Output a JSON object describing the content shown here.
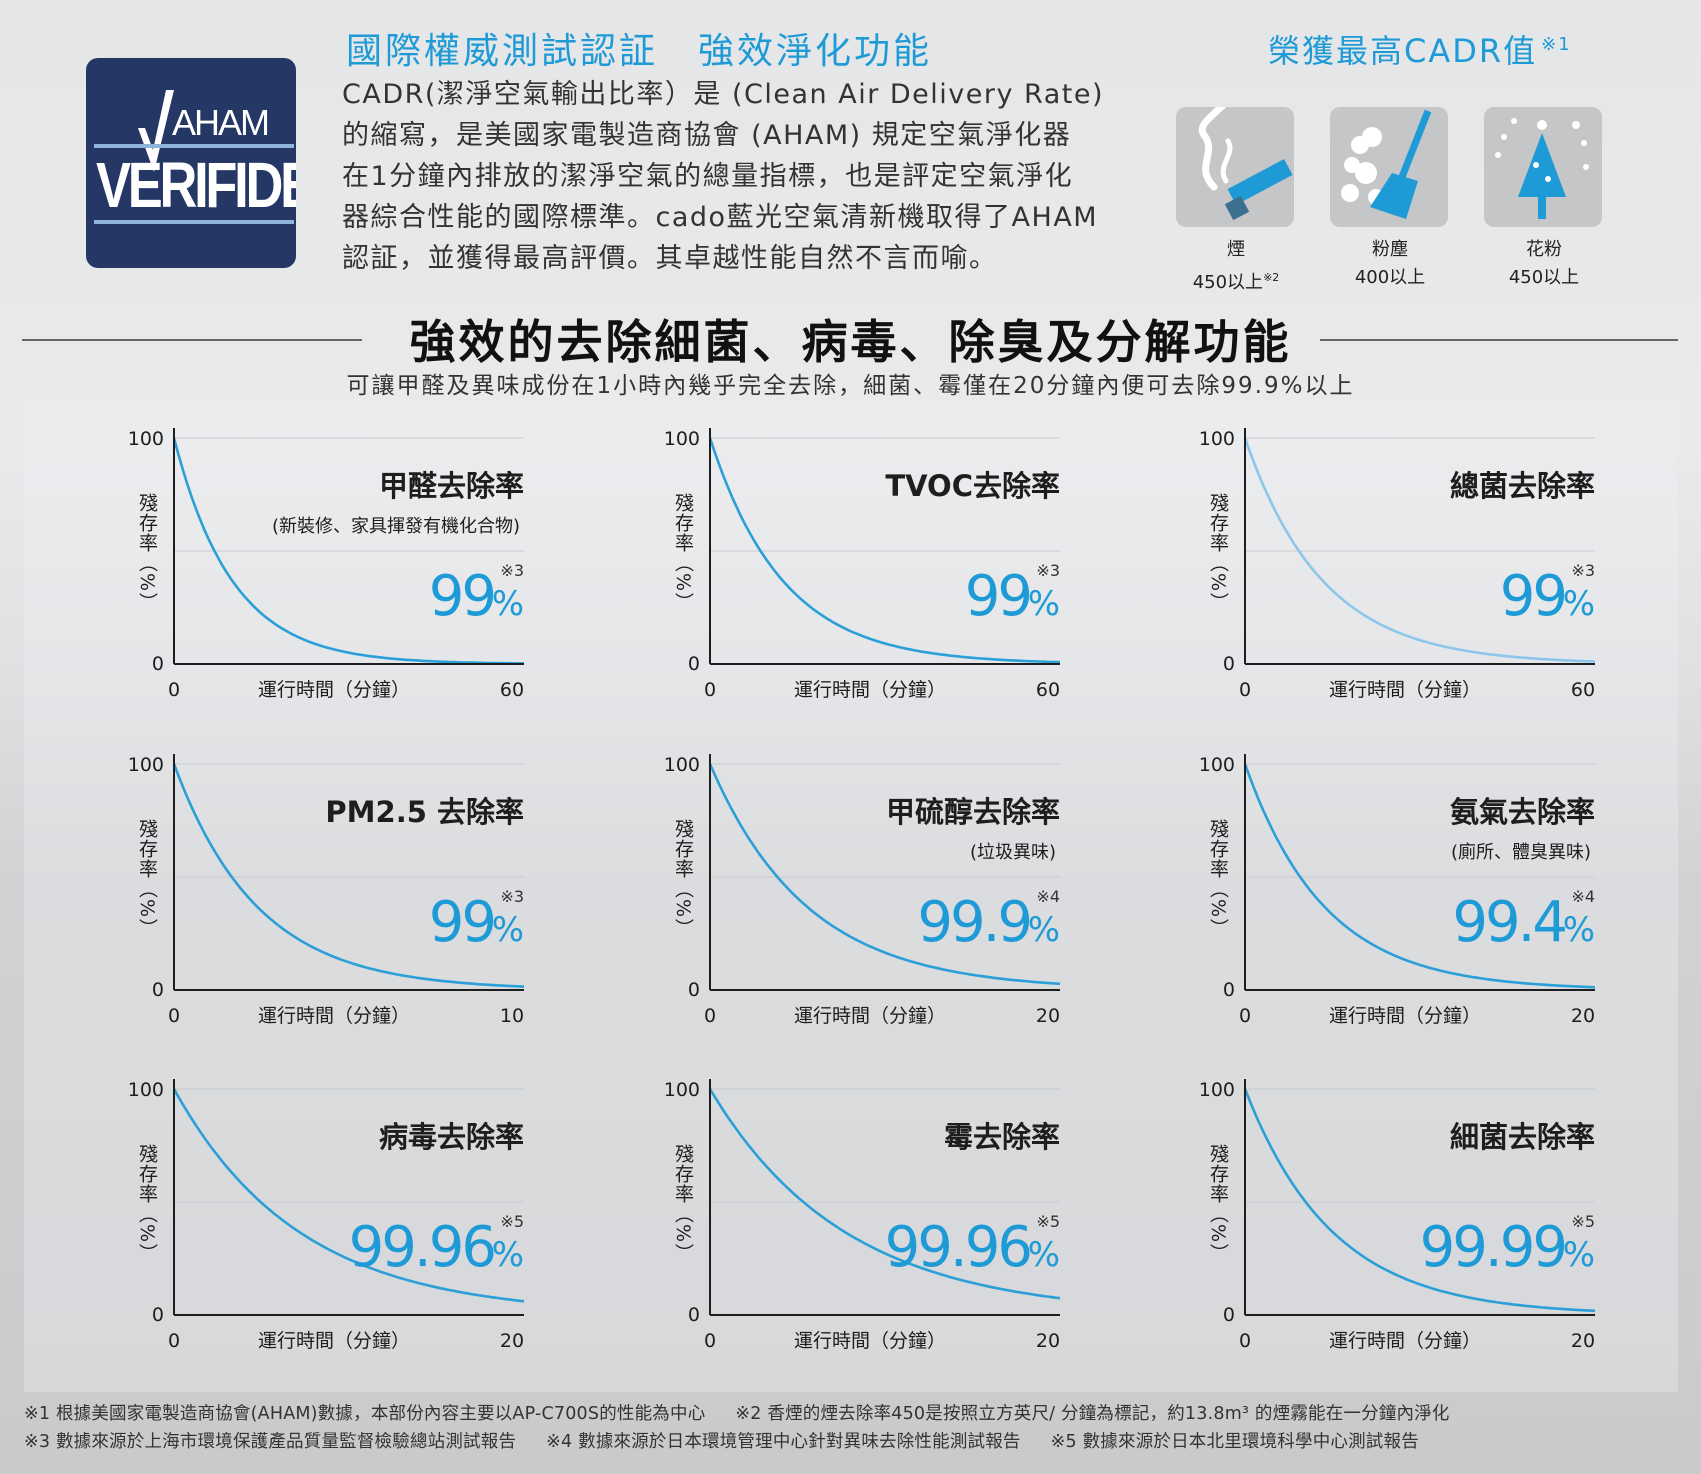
{
  "badge": {
    "top": "AHAM",
    "bottom": "VERIFIDE"
  },
  "intro": {
    "title_a": "國際權威測試認証",
    "title_b": "強效淨化功能",
    "lines": [
      "CADR(潔淨空氣輸出比率）是 (Clean Air Delivery Rate)",
      "的縮寫，是美國家電製造商協會 (AHAM) 規定空氣淨化器",
      "在1分鐘內排放的潔淨空氣的總量指標，也是評定空氣淨化",
      "器綜合性能的國際標準。cado藍光空氣清新機取得了AHAM",
      "認証，並獲得最高評價。其卓越性能自然不言而喻。"
    ]
  },
  "cadr": {
    "title": "榮獲最高CADR值",
    "title_note": "※1",
    "items": [
      {
        "icon": "cigarette-smoke-icon",
        "name": "煙",
        "value": "450以上",
        "note": "※2"
      },
      {
        "icon": "broom-dust-icon",
        "name": "粉塵",
        "value": "400以上",
        "note": ""
      },
      {
        "icon": "pollen-tree-icon",
        "name": "花粉",
        "value": "450以上",
        "note": ""
      }
    ]
  },
  "section": {
    "title": "強效的去除細菌、病毒、除臭及分解功能",
    "subtitle": "可讓甲醛及異味成份在1小時內幾乎完全去除，細菌、霉僅在20分鐘內便可去除99.9%以上"
  },
  "colors": {
    "accent": "#1e9ad6",
    "curve": "#2a9fd8",
    "curve_light": "#8cc6ea"
  },
  "chart_data": [
    {
      "type": "line",
      "title": "甲醛去除率",
      "subtitle": "(新裝修、家具揮發有機化合物)",
      "value": "99",
      "unit": "%",
      "note": "※3",
      "xlabel": "運行時間（分鐘）",
      "ylabel": "殘存率（%）",
      "x_ticks": [
        "0",
        "60"
      ],
      "y_ticks": [
        "100",
        "0"
      ],
      "xlim": [
        0,
        60
      ],
      "ylim": [
        0,
        100
      ],
      "decay_k": 0.1,
      "light": false
    },
    {
      "type": "line",
      "title": "TVOC去除率",
      "subtitle": "",
      "value": "99",
      "unit": "%",
      "note": "※3",
      "xlabel": "運行時間（分鐘）",
      "ylabel": "殘存率（%）",
      "x_ticks": [
        "0",
        "60"
      ],
      "y_ticks": [
        "100",
        "0"
      ],
      "xlim": [
        0,
        60
      ],
      "ylim": [
        0,
        100
      ],
      "decay_k": 0.08,
      "light": false
    },
    {
      "type": "line",
      "title": "總菌去除率",
      "subtitle": "",
      "value": "99",
      "unit": "%",
      "note": "※3",
      "xlabel": "運行時間（分鐘）",
      "ylabel": "殘存率（%）",
      "x_ticks": [
        "0",
        "60"
      ],
      "y_ticks": [
        "100",
        "0"
      ],
      "xlim": [
        0,
        60
      ],
      "ylim": [
        0,
        100
      ],
      "decay_k": 0.075,
      "light": true
    },
    {
      "type": "line",
      "title": "PM2.5 去除率",
      "subtitle": "",
      "value": "99",
      "unit": "%",
      "note": "※3",
      "xlabel": "運行時間（分鐘）",
      "ylabel": "殘存率（%）",
      "x_ticks": [
        "0",
        "10"
      ],
      "y_ticks": [
        "100",
        "0"
      ],
      "xlim": [
        0,
        10
      ],
      "ylim": [
        0,
        100
      ],
      "decay_k": 0.42,
      "light": false
    },
    {
      "type": "line",
      "title": "甲硫醇去除率",
      "subtitle": "(垃圾異味)",
      "value": "99.9",
      "unit": "%",
      "note": "※4",
      "xlabel": "運行時間（分鐘）",
      "ylabel": "殘存率（%）",
      "x_ticks": [
        "0",
        "20"
      ],
      "y_ticks": [
        "100",
        "0"
      ],
      "xlim": [
        0,
        20
      ],
      "ylim": [
        0,
        100
      ],
      "decay_k": 0.18,
      "light": false
    },
    {
      "type": "line",
      "title": "氨氣去除率",
      "subtitle": "(廁所、體臭異味)",
      "value": "99.4",
      "unit": "%",
      "note": "※4",
      "xlabel": "運行時間（分鐘）",
      "ylabel": "殘存率（%）",
      "x_ticks": [
        "0",
        "20"
      ],
      "y_ticks": [
        "100",
        "0"
      ],
      "xlim": [
        0,
        20
      ],
      "ylim": [
        0,
        100
      ],
      "decay_k": 0.22,
      "light": false
    },
    {
      "type": "line",
      "title": "病毒去除率",
      "subtitle": "",
      "value": "99.96",
      "unit": "%",
      "note": "※5",
      "xlabel": "運行時間（分鐘）",
      "ylabel": "殘存率（%）",
      "x_ticks": [
        "0",
        "20"
      ],
      "y_ticks": [
        "100",
        "0"
      ],
      "xlim": [
        0,
        20
      ],
      "ylim": [
        0,
        100
      ],
      "decay_k": 0.14,
      "light": false
    },
    {
      "type": "line",
      "title": "霉去除率",
      "subtitle": "",
      "value": "99.96",
      "unit": "%",
      "note": "※5",
      "xlabel": "運行時間（分鐘）",
      "ylabel": "殘存率（%）",
      "x_ticks": [
        "0",
        "20"
      ],
      "y_ticks": [
        "100",
        "0"
      ],
      "xlim": [
        0,
        20
      ],
      "ylim": [
        0,
        100
      ],
      "decay_k": 0.13,
      "light": false
    },
    {
      "type": "line",
      "title": "細菌去除率",
      "subtitle": "",
      "value": "99.99",
      "unit": "%",
      "note": "※5",
      "xlabel": "運行時間（分鐘）",
      "ylabel": "殘存率（%）",
      "x_ticks": [
        "0",
        "20"
      ],
      "y_ticks": [
        "100",
        "0"
      ],
      "xlim": [
        0,
        20
      ],
      "ylim": [
        0,
        100
      ],
      "decay_k": 0.2,
      "light": false
    }
  ],
  "footnotes": {
    "line1": [
      "※1  根據美國家電製造商協會(AHAM)數據，本部份內容主要以AP-C700S的性能為中心",
      "※2  香煙的煙去除率450是按照立方英尺/ 分鐘為標記，約13.8m³ 的煙霧能在一分鐘內淨化"
    ],
    "line2": [
      "※3  數據來源於上海市環境保護產品質量監督檢驗總站測試報告",
      "※4  數據來源於日本環境管理中心針對異味去除性能測試報告",
      "※5  數據來源於日本北里環境科學中心測試報告"
    ]
  }
}
